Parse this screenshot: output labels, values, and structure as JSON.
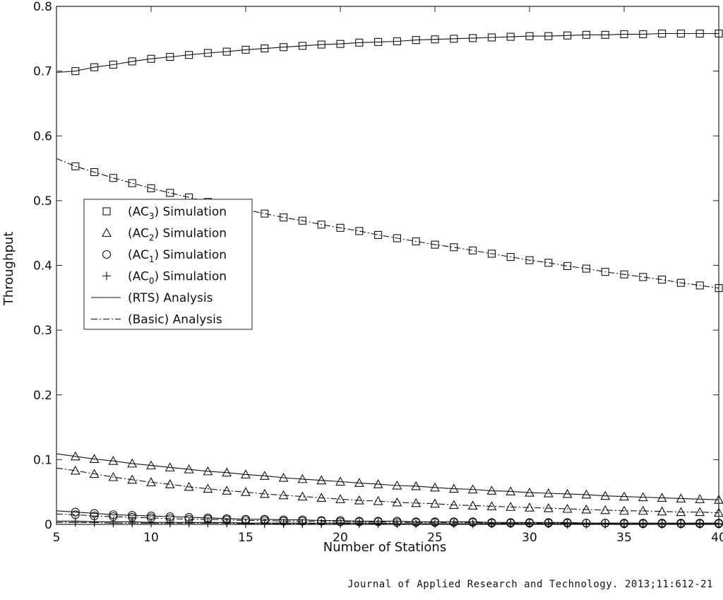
{
  "caption": "Journal of Applied Research and Technology. 2013;11:612-21",
  "chart_data": {
    "type": "line",
    "title": "",
    "xlabel": "Number of Stations",
    "ylabel": "Throughput",
    "xlim": [
      5,
      40
    ],
    "ylim": [
      0,
      0.8
    ],
    "xticks": [
      "5",
      "10",
      "15",
      "20",
      "25",
      "30",
      "35",
      "40"
    ],
    "yticks": [
      "0",
      "0.1",
      "0.2",
      "0.3",
      "0.4",
      "0.5",
      "0.6",
      "0.7",
      "0.8"
    ],
    "grid": false,
    "legend_position": "center-left",
    "x": [
      5,
      6,
      7,
      8,
      9,
      10,
      11,
      12,
      13,
      14,
      15,
      16,
      17,
      18,
      19,
      20,
      21,
      22,
      23,
      24,
      25,
      26,
      27,
      28,
      29,
      30,
      31,
      32,
      33,
      34,
      35,
      36,
      37,
      38,
      39,
      40
    ],
    "legend": [
      {
        "label": "(AC",
        "sub": "3",
        "suffix": ") Simulation",
        "marker": "square",
        "line": "none"
      },
      {
        "label": "(AC",
        "sub": "2",
        "suffix": ") Simulation",
        "marker": "triangle",
        "line": "none"
      },
      {
        "label": "(AC",
        "sub": "1",
        "suffix": ") Simulation",
        "marker": "circle",
        "line": "none"
      },
      {
        "label": "(AC",
        "sub": "0",
        "suffix": ") Simulation",
        "marker": "plus",
        "line": "none"
      },
      {
        "label": "(RTS) Analysis",
        "sub": "",
        "suffix": "",
        "marker": "none",
        "line": "solid"
      },
      {
        "label": "(Basic) Analysis",
        "sub": "",
        "suffix": "",
        "marker": "none",
        "line": "dashdot"
      }
    ],
    "series": [
      {
        "name": "AC3 RTS",
        "access_category": "AC3",
        "mode": "RTS",
        "marker": "square",
        "line": "solid",
        "values": [
          0.698,
          0.7,
          0.706,
          0.71,
          0.715,
          0.719,
          0.722,
          0.725,
          0.728,
          0.73,
          0.733,
          0.735,
          0.737,
          0.739,
          0.741,
          0.742,
          0.744,
          0.745,
          0.746,
          0.748,
          0.749,
          0.75,
          0.751,
          0.752,
          0.753,
          0.754,
          0.754,
          0.755,
          0.756,
          0.756,
          0.757,
          0.757,
          0.758,
          0.758,
          0.758,
          0.758
        ]
      },
      {
        "name": "AC3 Basic",
        "access_category": "AC3",
        "mode": "Basic",
        "marker": "square",
        "line": "dashdot",
        "values": [
          0.565,
          0.553,
          0.544,
          0.535,
          0.527,
          0.519,
          0.512,
          0.505,
          0.498,
          0.492,
          0.486,
          0.48,
          0.474,
          0.469,
          0.463,
          0.458,
          0.453,
          0.447,
          0.442,
          0.437,
          0.432,
          0.428,
          0.423,
          0.418,
          0.413,
          0.408,
          0.404,
          0.399,
          0.395,
          0.39,
          0.386,
          0.382,
          0.378,
          0.373,
          0.369,
          0.365
        ]
      },
      {
        "name": "AC2 RTS",
        "access_category": "AC2",
        "mode": "RTS",
        "marker": "triangle",
        "line": "solid",
        "values": [
          0.109,
          0.105,
          0.101,
          0.098,
          0.094,
          0.091,
          0.088,
          0.085,
          0.082,
          0.08,
          0.077,
          0.075,
          0.072,
          0.07,
          0.068,
          0.066,
          0.064,
          0.062,
          0.06,
          0.059,
          0.057,
          0.055,
          0.054,
          0.052,
          0.051,
          0.049,
          0.048,
          0.047,
          0.046,
          0.044,
          0.043,
          0.042,
          0.041,
          0.04,
          0.039,
          0.038
        ]
      },
      {
        "name": "AC2 Basic",
        "access_category": "AC2",
        "mode": "Basic",
        "marker": "triangle",
        "line": "dashdot",
        "values": [
          0.087,
          0.083,
          0.078,
          0.073,
          0.069,
          0.065,
          0.062,
          0.058,
          0.055,
          0.052,
          0.05,
          0.047,
          0.045,
          0.043,
          0.041,
          0.039,
          0.037,
          0.036,
          0.034,
          0.033,
          0.032,
          0.03,
          0.029,
          0.028,
          0.027,
          0.026,
          0.025,
          0.024,
          0.023,
          0.022,
          0.021,
          0.021,
          0.02,
          0.019,
          0.019,
          0.018
        ]
      },
      {
        "name": "AC1 RTS",
        "access_category": "AC1",
        "mode": "RTS",
        "marker": "circle",
        "line": "solid",
        "values": [
          0.021,
          0.019,
          0.017,
          0.015,
          0.014,
          0.013,
          0.012,
          0.011,
          0.01,
          0.009,
          0.008,
          0.008,
          0.007,
          0.007,
          0.006,
          0.006,
          0.005,
          0.005,
          0.005,
          0.004,
          0.004,
          0.004,
          0.004,
          0.003,
          0.003,
          0.003,
          0.003,
          0.003,
          0.002,
          0.002,
          0.002,
          0.002,
          0.002,
          0.002,
          0.002,
          0.002
        ]
      },
      {
        "name": "AC1 Basic",
        "access_category": "AC1",
        "mode": "Basic",
        "marker": "circle",
        "line": "dashdot",
        "values": [
          0.016,
          0.015,
          0.013,
          0.012,
          0.011,
          0.01,
          0.009,
          0.008,
          0.008,
          0.007,
          0.006,
          0.006,
          0.005,
          0.005,
          0.005,
          0.004,
          0.004,
          0.004,
          0.003,
          0.003,
          0.003,
          0.003,
          0.003,
          0.002,
          0.002,
          0.002,
          0.002,
          0.002,
          0.002,
          0.002,
          0.001,
          0.001,
          0.001,
          0.001,
          0.001,
          0.001
        ]
      },
      {
        "name": "AC0 RTS",
        "access_category": "AC0",
        "mode": "RTS",
        "marker": "plus",
        "line": "solid",
        "values": [
          0.005,
          0.005,
          0.004,
          0.004,
          0.004,
          0.003,
          0.003,
          0.003,
          0.003,
          0.003,
          0.002,
          0.002,
          0.002,
          0.002,
          0.002,
          0.002,
          0.002,
          0.002,
          0.001,
          0.001,
          0.001,
          0.001,
          0.001,
          0.001,
          0.001,
          0.001,
          0.001,
          0.001,
          0.001,
          0.001,
          0.001,
          0.001,
          0.001,
          0.001,
          0.001,
          0.001
        ]
      },
      {
        "name": "AC0 Basic",
        "access_category": "AC0",
        "mode": "Basic",
        "marker": "plus",
        "line": "dashdot",
        "values": [
          0.003,
          0.003,
          0.003,
          0.002,
          0.002,
          0.002,
          0.002,
          0.002,
          0.002,
          0.002,
          0.001,
          0.001,
          0.001,
          0.001,
          0.001,
          0.001,
          0.001,
          0.001,
          0.001,
          0.001,
          0.001,
          0.001,
          0.001,
          0.001,
          0.001,
          0.001,
          0.001,
          0.0,
          0.0,
          0.0,
          0.0,
          0.0,
          0.0,
          0.0,
          0.0,
          0.0
        ]
      }
    ]
  }
}
